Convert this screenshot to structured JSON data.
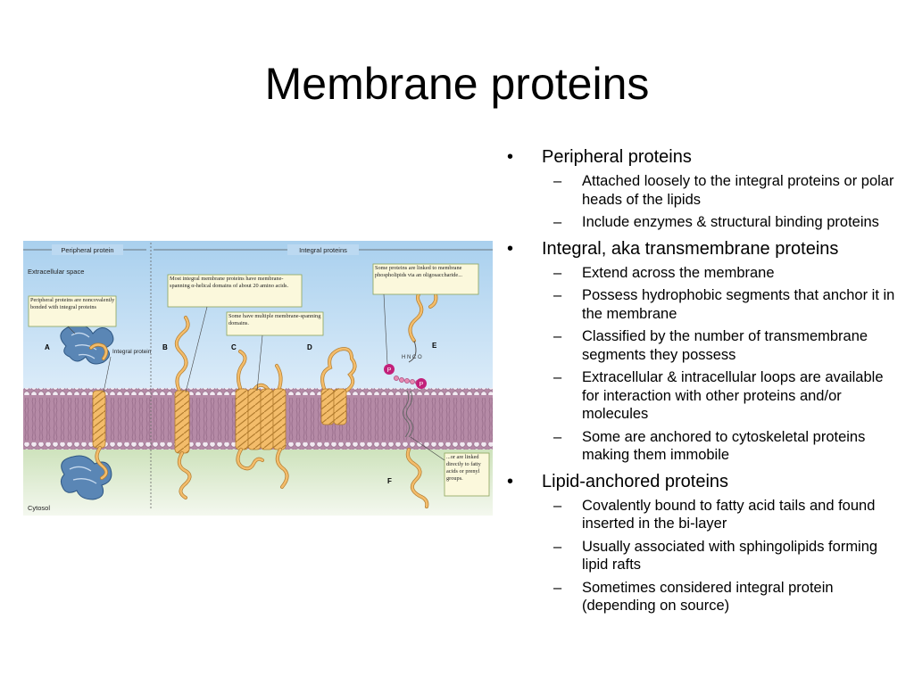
{
  "slide": {
    "title": "Membrane proteins",
    "bullets": [
      {
        "text": "Peripheral proteins",
        "subs": [
          "Attached loosely to the integral proteins or polar heads of the lipids",
          "Include enzymes & structural binding proteins"
        ]
      },
      {
        "text": "Integral, aka transmembrane proteins",
        "subs": [
          "Extend across the membrane",
          "Possess hydrophobic segments that anchor it in the membrane",
          "Classified by the number of transmembrane segments they possess",
          "Extracellular & intracellular loops are available for interaction with other proteins and/or molecules",
          "Some are anchored to cytoskeletal proteins making them immobile"
        ]
      },
      {
        "text": "Lipid-anchored proteins",
        "subs": [
          "Covalently bound to fatty acid tails and found inserted in the bi-layer",
          "Usually associated with sphingolipids forming lipid rafts",
          "Sometimes considered integral protein (depending on source)"
        ]
      }
    ]
  },
  "figure": {
    "header_peripheral": "Peripheral protein",
    "header_integral": "Integral proteins",
    "extracellular": "Extracellular space",
    "cytosol": "Cytosol",
    "callout_a": "Peripheral proteins are noncovalently bonded with integral proteins",
    "callout_b": "Most integral membrane proteins have membrane-spanning α-helical domains of about 20 amino acids.",
    "callout_c": "Some have multiple membrane-spanning domains.",
    "callout_e": "Some proteins are linked to membrane phospholipids via an oligosaccharide...",
    "callout_f": "...or are linked directly to fatty acids or prenyl groups.",
    "label_integral_protein": "Integral protein",
    "letters": [
      "A",
      "B",
      "C",
      "D",
      "E",
      "F"
    ],
    "p_label": "P",
    "chem_label": "H N C O",
    "colors": {
      "extracellular_top": "#a9d0ee",
      "extracellular_bottom": "#e2effa",
      "membrane": "#b58aa6",
      "lipid_head": "#f2eaf2",
      "cytosol": "#cfe3bd",
      "protein": "#f3bc6a",
      "protein_stroke": "#b27c2e",
      "peripheral": "#5a86b5",
      "phosphate": "#c2207a"
    }
  }
}
